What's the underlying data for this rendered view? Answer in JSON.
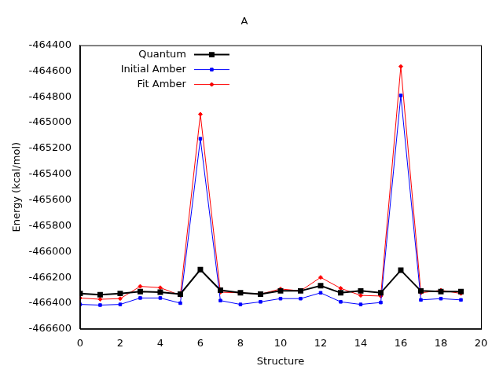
{
  "chart_data": {
    "type": "line",
    "title": "A",
    "x_label": "Structure",
    "y_label": "Energy (kcal/mol)",
    "x": [
      0,
      1,
      2,
      3,
      4,
      5,
      6,
      7,
      8,
      9,
      10,
      11,
      12,
      13,
      14,
      15,
      16,
      17,
      18,
      19
    ],
    "series": [
      {
        "name": "Quantum",
        "color": "#000000",
        "marker": "square",
        "line_style": "solid",
        "values": [
          -466325,
          -466335,
          -466325,
          -466310,
          -466315,
          -466330,
          -466140,
          -466300,
          -466320,
          -466330,
          -466305,
          -466305,
          -466265,
          -466320,
          -466305,
          -466320,
          -466145,
          -466305,
          -466310,
          -466310
        ]
      },
      {
        "name": "Initial Amber",
        "color": "#0000ff",
        "marker": "square",
        "line_style": "solid",
        "values": [
          -466410,
          -466415,
          -466410,
          -466360,
          -466360,
          -466400,
          -465125,
          -466380,
          -466410,
          -466390,
          -466365,
          -466365,
          -466320,
          -466390,
          -466410,
          -466395,
          -464790,
          -466375,
          -466365,
          -466375
        ]
      },
      {
        "name": "Fit Amber",
        "color": "#ff0000",
        "marker": "diamond",
        "line_style": "solid",
        "values": [
          -466360,
          -466370,
          -466365,
          -466270,
          -466280,
          -466340,
          -464935,
          -466315,
          -466320,
          -466330,
          -466290,
          -466305,
          -466200,
          -466285,
          -466340,
          -466345,
          -464565,
          -466320,
          -466300,
          -466325
        ]
      }
    ],
    "xlim": [
      0,
      20
    ],
    "xticks": [
      0,
      2,
      4,
      6,
      8,
      10,
      12,
      14,
      16,
      18,
      20
    ],
    "ylim": [
      -466600,
      -464400
    ],
    "yticks": [
      -466600,
      -466400,
      -466200,
      -466000,
      -465800,
      -465600,
      -465400,
      -465200,
      -465000,
      -464800,
      -464600,
      -464400
    ],
    "grid": false,
    "legend": "upper left"
  }
}
